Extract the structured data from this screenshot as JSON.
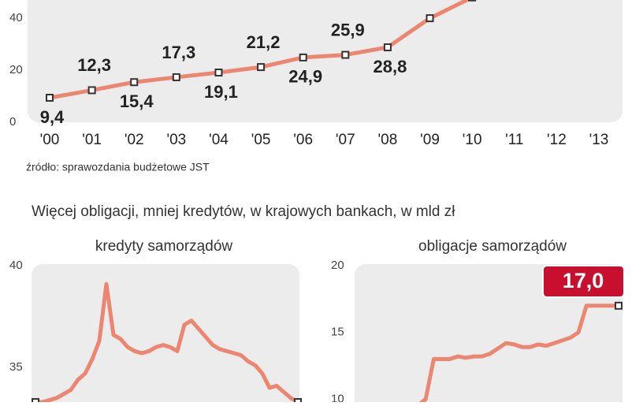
{
  "chart_data": [
    {
      "type": "line",
      "categories": [
        "'00",
        "'01",
        "'02",
        "'03",
        "'04",
        "'05",
        "'06",
        "'07",
        "'08",
        "'09",
        "'10",
        "'11",
        "'12",
        "'13"
      ],
      "values": [
        9.4,
        12.3,
        15.4,
        17.3,
        19.1,
        21.2,
        24.9,
        25.9,
        28.8,
        40,
        48,
        null,
        null,
        null
      ],
      "value_labels": [
        "9,4",
        "12,3",
        "15,4",
        "17,3",
        "19,1",
        "21,2",
        "24,9",
        "25,9",
        "28,8",
        null,
        null,
        null,
        null,
        null
      ],
      "color": "#ec8670",
      "ylim": [
        0,
        47
      ],
      "yticks": [
        0,
        20,
        40
      ],
      "source": "źródło: sprawozdania budżetowe JST"
    },
    {
      "type": "line",
      "title": "kredyty samorządów",
      "values": [
        33.3,
        33.3,
        33.4,
        33.5,
        33.7,
        33.9,
        34.4,
        34.7,
        35.4,
        36.3,
        39.1,
        36.6,
        36.4,
        36.0,
        35.8,
        35.7,
        35.8,
        36.0,
        36.1,
        36.0,
        35.8,
        37.1,
        37.3,
        36.9,
        36.5,
        36.1,
        35.9,
        35.8,
        35.7,
        35.6,
        35.3,
        35.1,
        34.7,
        34.0,
        34.1,
        33.8,
        33.5,
        33.3
      ],
      "color": "#ec8670",
      "ylim": [
        33.3,
        40
      ],
      "yticks": [
        35,
        40
      ]
    },
    {
      "type": "line",
      "title": "obligacje samorządów",
      "values": [
        9.5,
        10.0,
        13.0,
        13.0,
        13.0,
        13.2,
        13.1,
        13.2,
        13.2,
        13.4,
        13.8,
        14.2,
        14.1,
        13.9,
        13.9,
        14.1,
        14.0,
        14.2,
        14.4,
        14.6,
        15.0,
        17.0,
        17.0,
        17.0,
        17.0,
        17.0
      ],
      "end_label": "17,0",
      "color": "#ec8670",
      "ylim": [
        9.9,
        20
      ],
      "yticks": [
        10,
        15,
        20
      ]
    }
  ],
  "heading": "Więcej obligacji, mniej kredytów, w krajowych bankach, w mld zł"
}
